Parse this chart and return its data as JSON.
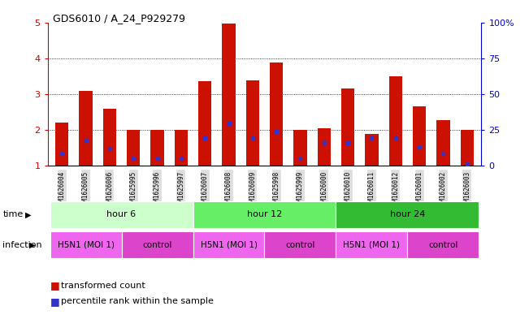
{
  "title": "GDS6010 / A_24_P929279",
  "samples": [
    "GSM1626004",
    "GSM1626005",
    "GSM1626006",
    "GSM1625995",
    "GSM1625996",
    "GSM1625997",
    "GSM1626007",
    "GSM1626008",
    "GSM1626009",
    "GSM1625998",
    "GSM1625999",
    "GSM1626000",
    "GSM1626010",
    "GSM1626011",
    "GSM1626012",
    "GSM1626001",
    "GSM1626002",
    "GSM1626003"
  ],
  "bar_heights": [
    2.2,
    3.1,
    2.6,
    2.0,
    2.0,
    2.0,
    3.35,
    4.97,
    3.38,
    3.87,
    2.0,
    2.05,
    3.15,
    1.88,
    3.5,
    2.67,
    2.28,
    2.0
  ],
  "blue_dots": [
    1.35,
    1.72,
    1.48,
    1.22,
    1.22,
    1.22,
    1.78,
    2.18,
    1.78,
    1.95,
    1.22,
    1.65,
    1.65,
    1.78,
    1.78,
    1.52,
    1.35,
    1.05
  ],
  "bar_color": "#CC1100",
  "dot_color": "#3333CC",
  "ylim": [
    1,
    5
  ],
  "yticks_left": [
    1,
    2,
    3,
    4,
    5
  ],
  "yticks_right": [
    0,
    25,
    50,
    75,
    100
  ],
  "ylabel_right_labels": [
    "0",
    "25",
    "50",
    "75",
    "100%"
  ],
  "time_group_colors": [
    "#CCFFCC",
    "#66EE66",
    "#33BB33"
  ],
  "time_groups": [
    {
      "label": "hour 6",
      "start": 0,
      "end": 6
    },
    {
      "label": "hour 12",
      "start": 6,
      "end": 12
    },
    {
      "label": "hour 24",
      "start": 12,
      "end": 18
    }
  ],
  "infection_groups": [
    {
      "label": "H5N1 (MOI 1)",
      "start": 0,
      "end": 3,
      "color": "#EE66EE"
    },
    {
      "label": "control",
      "start": 3,
      "end": 6,
      "color": "#DD44CC"
    },
    {
      "label": "H5N1 (MOI 1)",
      "start": 6,
      "end": 9,
      "color": "#EE66EE"
    },
    {
      "label": "control",
      "start": 9,
      "end": 12,
      "color": "#DD44CC"
    },
    {
      "label": "H5N1 (MOI 1)",
      "start": 12,
      "end": 15,
      "color": "#EE66EE"
    },
    {
      "label": "control",
      "start": 15,
      "end": 18,
      "color": "#DD44CC"
    }
  ],
  "tick_label_color_left": "#CC0000",
  "tick_label_color_right": "#0000CC",
  "bar_color_spine_left": "#CC0000",
  "bar_color_spine_right": "#0000CC"
}
